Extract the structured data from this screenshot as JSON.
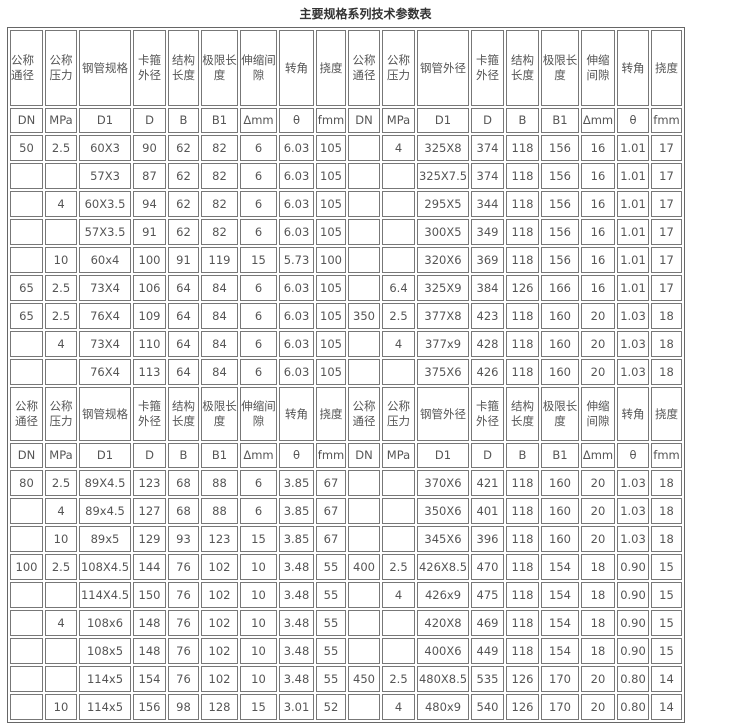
{
  "title": "主要规格系列技术参数表",
  "header_first": [
    "公称通径",
    "公称压力",
    "钢管规格",
    "卡箍外径",
    "结构长度",
    "极限长度",
    "伸缩间隙",
    "转角",
    "挠度",
    "公称通径",
    "公称压力",
    "钢管外径",
    "卡箍外径",
    "结构长度",
    "极限长度",
    "伸缩间隙",
    "转角",
    "挠度"
  ],
  "units": [
    "DN",
    "MPa",
    "D1",
    "D",
    "B",
    "B1",
    "Δmm",
    "θ",
    "fmm",
    "DN",
    "MPa",
    "D1",
    "D",
    "B",
    "B1",
    "Δmm",
    "θ",
    "fmm"
  ],
  "rows_part1": [
    [
      "50",
      "2.5",
      "60X3",
      "90",
      "62",
      "82",
      "6",
      "6.03",
      "105",
      "",
      "4",
      "325X8",
      "374",
      "118",
      "156",
      "16",
      "1.01",
      "17"
    ],
    [
      "",
      "",
      "57X3",
      "87",
      "62",
      "82",
      "6",
      "6.03",
      "105",
      "",
      "",
      "325X7.5",
      "374",
      "118",
      "156",
      "16",
      "1.01",
      "17"
    ],
    [
      "",
      "4",
      "60X3.5",
      "94",
      "62",
      "82",
      "6",
      "6.03",
      "105",
      "",
      "",
      "295X5",
      "344",
      "118",
      "156",
      "16",
      "1.01",
      "17"
    ],
    [
      "",
      "",
      "57X3.5",
      "91",
      "62",
      "82",
      "6",
      "6.03",
      "105",
      "",
      "",
      "300X5",
      "349",
      "118",
      "156",
      "16",
      "1.01",
      "17"
    ],
    [
      "",
      "10",
      "60x4",
      "100",
      "91",
      "119",
      "15",
      "5.73",
      "100",
      "",
      "",
      "320X6",
      "369",
      "118",
      "156",
      "16",
      "1.01",
      "17"
    ],
    [
      "65",
      "2.5",
      "73X4",
      "106",
      "64",
      "84",
      "6",
      "6.03",
      "105",
      "",
      "6.4",
      "325X9",
      "384",
      "126",
      "166",
      "16",
      "1.01",
      "17"
    ],
    [
      "65",
      "2.5",
      "76X4",
      "109",
      "64",
      "84",
      "6",
      "6.03",
      "105",
      "350",
      "2.5",
      "377X8",
      "423",
      "118",
      "160",
      "20",
      "1.03",
      "18"
    ],
    [
      "",
      "4",
      "73X4",
      "110",
      "64",
      "84",
      "6",
      "6.03",
      "105",
      "",
      "4",
      "377x9",
      "428",
      "118",
      "160",
      "20",
      "1.03",
      "18"
    ],
    [
      "",
      "",
      "76X4",
      "113",
      "64",
      "84",
      "6",
      "6.03",
      "105",
      "",
      "",
      "375X6",
      "426",
      "118",
      "160",
      "20",
      "1.03",
      "18"
    ]
  ],
  "header_second": [
    "公称通径",
    "公称压力",
    "钢管规格",
    "卡箍外径",
    "结构长度",
    "极限长度",
    "伸缩间隙",
    "转角",
    "挠度",
    "公称通径",
    "公称压力",
    "钢管外径",
    "卡箍外径",
    "结构长度",
    "极限长度",
    "伸缩间隙",
    "转角",
    "挠度"
  ],
  "units_second": [
    "DN",
    "MPa",
    "D1",
    "D",
    "B",
    "B1",
    "Δmm",
    "θ",
    "fmm",
    "DN",
    "MPa",
    "D1",
    "D",
    "B",
    "B1",
    "Δmm",
    "θ",
    "fmm"
  ],
  "rows_part2": [
    [
      "80",
      "2.5",
      "89X4.5",
      "123",
      "68",
      "88",
      "6",
      "3.85",
      "67",
      "",
      "",
      "370X6",
      "421",
      "118",
      "160",
      "20",
      "1.03",
      "18"
    ],
    [
      "",
      "4",
      "89x4.5",
      "127",
      "68",
      "88",
      "6",
      "3.85",
      "67",
      "",
      "",
      "350X6",
      "401",
      "118",
      "160",
      "20",
      "1.03",
      "18"
    ],
    [
      "",
      "10",
      "89x5",
      "129",
      "93",
      "123",
      "15",
      "3.85",
      "67",
      "",
      "",
      "345X6",
      "396",
      "118",
      "160",
      "20",
      "1.03",
      "18"
    ],
    [
      "100",
      "2.5",
      "108X4.5",
      "144",
      "76",
      "102",
      "10",
      "3.48",
      "55",
      "400",
      "2.5",
      "426X8.5",
      "470",
      "118",
      "154",
      "18",
      "0.90",
      "15"
    ],
    [
      "",
      "",
      "114X4.5",
      "150",
      "76",
      "102",
      "10",
      "3.48",
      "55",
      "",
      "4",
      "426x9",
      "475",
      "118",
      "154",
      "18",
      "0.90",
      "15"
    ],
    [
      "",
      "4",
      "108x6",
      "148",
      "76",
      "102",
      "10",
      "3.48",
      "55",
      "",
      "",
      "420X8",
      "469",
      "118",
      "154",
      "18",
      "0.90",
      "15"
    ],
    [
      "",
      "",
      "108x5",
      "148",
      "76",
      "102",
      "10",
      "3.48",
      "55",
      "",
      "",
      "400X6",
      "449",
      "118",
      "154",
      "18",
      "0.90",
      "15"
    ],
    [
      "",
      "",
      "114x5",
      "154",
      "76",
      "102",
      "10",
      "3.48",
      "55",
      "450",
      "2.5",
      "480X8.5",
      "535",
      "126",
      "170",
      "20",
      "0.80",
      "14"
    ],
    [
      "",
      "10",
      "114x5",
      "156",
      "98",
      "128",
      "15",
      "3.01",
      "52",
      "",
      "4",
      "480x9",
      "540",
      "126",
      "170",
      "20",
      "0.80",
      "14"
    ]
  ]
}
